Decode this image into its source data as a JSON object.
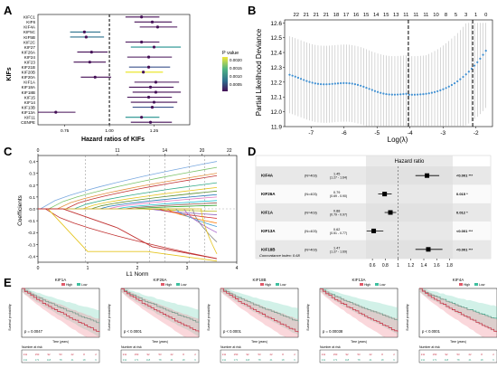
{
  "panels": {
    "A": {
      "label": "A",
      "ylabel": "KIFs",
      "xlabel": "Hazard ratios of KIFs",
      "legend_title": "P value",
      "legend_values": [
        "0.0020",
        "0.0015",
        "0.0010",
        "0.0005"
      ],
      "ticks": [
        "0.75",
        "1.00",
        "1.25"
      ]
    },
    "B": {
      "label": "B",
      "xlabel": "Log(λ)",
      "ylabel": "Partial Likelihood Deviance",
      "top_counts": [
        "22",
        "21",
        "21",
        "21",
        "18",
        "17",
        "16",
        "15",
        "14",
        "15",
        "13",
        "11",
        "11",
        "11",
        "10",
        "8",
        "5",
        "3",
        "1",
        "0"
      ],
      "xticks": [
        "-7",
        "-6",
        "-5",
        "-4",
        "-3",
        "-2"
      ],
      "yticks": [
        "11.9",
        "12.0",
        "12.1",
        "12.2",
        "12.3",
        "12.4",
        "12.5",
        "12.6"
      ]
    },
    "C": {
      "label": "C",
      "xlabel": "L1 Norm",
      "ylabel": "Coefficients",
      "top_ticks": [
        "0",
        "11",
        "14",
        "20",
        "22"
      ],
      "xticks": [
        "0",
        "1",
        "2",
        "3",
        "4"
      ],
      "yticks": [
        "0.4",
        "0.3",
        "0.2",
        "0.1",
        "0.0",
        "-0.1",
        "-0.2",
        "-0.3",
        "-0.4"
      ]
    },
    "D": {
      "label": "D",
      "title": "Hazard ratio",
      "footer": "Concordance Index: 0.68",
      "xticks": [
        "0.6",
        "0.8",
        "1",
        "1.2",
        "1.4",
        "1.6",
        "1.8"
      ]
    },
    "E": {
      "label": "E"
    }
  },
  "chart_data": [
    {
      "type": "scatter",
      "panel": "A",
      "title": "",
      "xlabel": "Hazard ratios of KIFs",
      "ylabel": "KIFs",
      "xlim": [
        0.6,
        1.45
      ],
      "reference_line": 1.0,
      "categories": [
        "KIFC1",
        "KIF6",
        "KIF4A",
        "KIF5C",
        "KIF5B",
        "KIF2C",
        "KIF27",
        "KIF26A",
        "KIF24",
        "KIF23",
        "KIF21B",
        "KIF20B",
        "KIF20A",
        "KIF1A",
        "KIF18A",
        "KIF18B",
        "KIF15",
        "KIF14",
        "KIF13B",
        "KIF13A",
        "KIF11",
        "CENPE"
      ],
      "series": [
        {
          "values": [
            1.18,
            1.24,
            1.27,
            0.86,
            0.87,
            1.18,
            1.25,
            0.9,
            1.22,
            0.89,
            1.22,
            1.19,
            0.92,
            1.26,
            1.23,
            1.26,
            1.22,
            1.25,
            1.24,
            0.7,
            1.18,
            1.23
          ],
          "lower": [
            1.09,
            1.14,
            1.17,
            0.78,
            0.78,
            1.09,
            1.12,
            0.82,
            1.1,
            0.8,
            1.11,
            1.09,
            0.84,
            1.14,
            1.11,
            1.13,
            1.1,
            1.12,
            1.13,
            0.6,
            1.09,
            1.12
          ],
          "upper": [
            1.28,
            1.35,
            1.38,
            0.95,
            0.97,
            1.28,
            1.4,
            0.99,
            1.35,
            0.98,
            1.34,
            1.3,
            1.01,
            1.39,
            1.36,
            1.4,
            1.35,
            1.38,
            1.36,
            0.81,
            1.28,
            1.35
          ]
        }
      ]
    },
    {
      "type": "line",
      "panel": "B",
      "xlabel": "Log(λ)",
      "ylabel": "Partial Likelihood Deviance",
      "xlim": [
        -7.8,
        -1.5
      ],
      "ylim": [
        11.9,
        12.62
      ],
      "vlines": [
        -4.05,
        -2.1
      ]
    },
    {
      "type": "line",
      "panel": "C",
      "xlabel": "L1 Norm",
      "ylabel": "Coefficients",
      "xlim": [
        0,
        4
      ],
      "ylim": [
        -0.45,
        0.45
      ]
    },
    {
      "type": "scatter",
      "panel": "D",
      "title": "Hazard ratio",
      "categories": [
        "KIF4A",
        "KIF26A",
        "KIF1A",
        "KIF13A",
        "KIF18B"
      ],
      "n_text": [
        "(N=403)",
        "(N=403)",
        "(N=403)",
        "(N=403)",
        "(N=403)"
      ],
      "ci_text": [
        "1.45\n(1.27 - 1.64)",
        "0.79\n(0.69 - 0.90)",
        "0.88\n(0.79 - 0.97)",
        "0.62\n(0.51 - 0.77)",
        "1.47\n(1.27 - 1.69)"
      ],
      "p_text": [
        "<0.001 ***",
        "0.015 *",
        "0.012 *",
        "<0.001 ***",
        "<0.001 ***"
      ],
      "values": [
        1.45,
        0.79,
        0.88,
        0.62,
        1.47
      ],
      "lower": [
        1.27,
        0.69,
        0.79,
        0.51,
        1.27
      ],
      "upper": [
        1.64,
        0.9,
        0.97,
        0.77,
        1.69
      ],
      "xlim": [
        0.5,
        1.85
      ],
      "reference_line": 1.0
    },
    {
      "type": "line",
      "panel": "E",
      "plots": [
        {
          "title": "KIF1A",
          "pvalue": "p = 0.0047"
        },
        {
          "title": "KIF26A",
          "pvalue": "p < 0.0001"
        },
        {
          "title": "KIF18B",
          "pvalue": "p < 0.0001"
        },
        {
          "title": "KIF13A",
          "pvalue": "p = 0.00038"
        },
        {
          "title": "KIF4A",
          "pvalue": "p < 0.0001"
        }
      ],
      "legend": [
        "High",
        "Low"
      ],
      "ylabel": "Survival probability",
      "xlabel": "Time (years)",
      "risk_label": "Number at risk"
    }
  ]
}
